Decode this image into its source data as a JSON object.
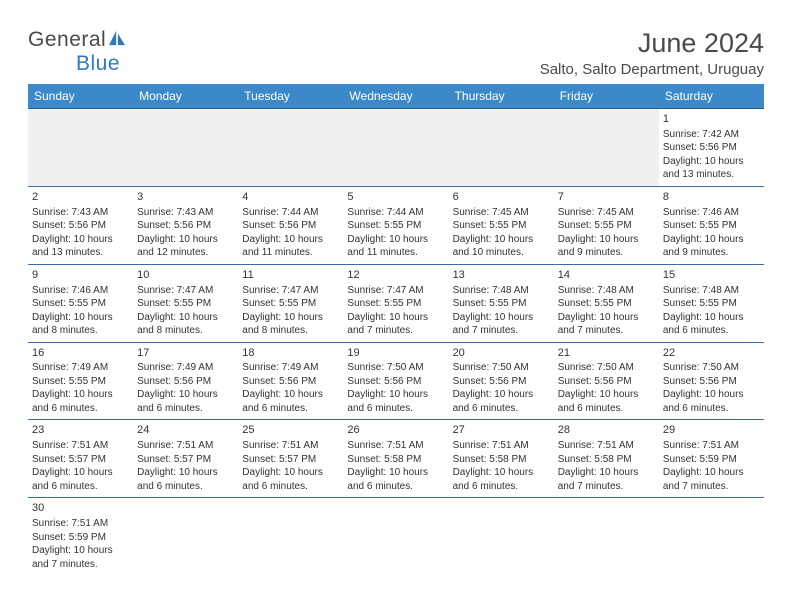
{
  "logo": {
    "text1": "General",
    "text2": "Blue"
  },
  "title": "June 2024",
  "location": "Salto, Salto Department, Uruguay",
  "colors": {
    "header_bg": "#3b89c8",
    "header_text": "#ffffff",
    "rule": "#3b6fa3",
    "logo_blue": "#2f7bbf",
    "text": "#4a4a4a"
  },
  "day_headers": [
    "Sunday",
    "Monday",
    "Tuesday",
    "Wednesday",
    "Thursday",
    "Friday",
    "Saturday"
  ],
  "weeks": [
    [
      null,
      null,
      null,
      null,
      null,
      null,
      {
        "n": "1",
        "sr": "7:42 AM",
        "ss": "5:56 PM",
        "dl": "10 hours and 13 minutes."
      }
    ],
    [
      {
        "n": "2",
        "sr": "7:43 AM",
        "ss": "5:56 PM",
        "dl": "10 hours and 13 minutes."
      },
      {
        "n": "3",
        "sr": "7:43 AM",
        "ss": "5:56 PM",
        "dl": "10 hours and 12 minutes."
      },
      {
        "n": "4",
        "sr": "7:44 AM",
        "ss": "5:56 PM",
        "dl": "10 hours and 11 minutes."
      },
      {
        "n": "5",
        "sr": "7:44 AM",
        "ss": "5:55 PM",
        "dl": "10 hours and 11 minutes."
      },
      {
        "n": "6",
        "sr": "7:45 AM",
        "ss": "5:55 PM",
        "dl": "10 hours and 10 minutes."
      },
      {
        "n": "7",
        "sr": "7:45 AM",
        "ss": "5:55 PM",
        "dl": "10 hours and 9 minutes."
      },
      {
        "n": "8",
        "sr": "7:46 AM",
        "ss": "5:55 PM",
        "dl": "10 hours and 9 minutes."
      }
    ],
    [
      {
        "n": "9",
        "sr": "7:46 AM",
        "ss": "5:55 PM",
        "dl": "10 hours and 8 minutes."
      },
      {
        "n": "10",
        "sr": "7:47 AM",
        "ss": "5:55 PM",
        "dl": "10 hours and 8 minutes."
      },
      {
        "n": "11",
        "sr": "7:47 AM",
        "ss": "5:55 PM",
        "dl": "10 hours and 8 minutes."
      },
      {
        "n": "12",
        "sr": "7:47 AM",
        "ss": "5:55 PM",
        "dl": "10 hours and 7 minutes."
      },
      {
        "n": "13",
        "sr": "7:48 AM",
        "ss": "5:55 PM",
        "dl": "10 hours and 7 minutes."
      },
      {
        "n": "14",
        "sr": "7:48 AM",
        "ss": "5:55 PM",
        "dl": "10 hours and 7 minutes."
      },
      {
        "n": "15",
        "sr": "7:48 AM",
        "ss": "5:55 PM",
        "dl": "10 hours and 6 minutes."
      }
    ],
    [
      {
        "n": "16",
        "sr": "7:49 AM",
        "ss": "5:55 PM",
        "dl": "10 hours and 6 minutes."
      },
      {
        "n": "17",
        "sr": "7:49 AM",
        "ss": "5:56 PM",
        "dl": "10 hours and 6 minutes."
      },
      {
        "n": "18",
        "sr": "7:49 AM",
        "ss": "5:56 PM",
        "dl": "10 hours and 6 minutes."
      },
      {
        "n": "19",
        "sr": "7:50 AM",
        "ss": "5:56 PM",
        "dl": "10 hours and 6 minutes."
      },
      {
        "n": "20",
        "sr": "7:50 AM",
        "ss": "5:56 PM",
        "dl": "10 hours and 6 minutes."
      },
      {
        "n": "21",
        "sr": "7:50 AM",
        "ss": "5:56 PM",
        "dl": "10 hours and 6 minutes."
      },
      {
        "n": "22",
        "sr": "7:50 AM",
        "ss": "5:56 PM",
        "dl": "10 hours and 6 minutes."
      }
    ],
    [
      {
        "n": "23",
        "sr": "7:51 AM",
        "ss": "5:57 PM",
        "dl": "10 hours and 6 minutes."
      },
      {
        "n": "24",
        "sr": "7:51 AM",
        "ss": "5:57 PM",
        "dl": "10 hours and 6 minutes."
      },
      {
        "n": "25",
        "sr": "7:51 AM",
        "ss": "5:57 PM",
        "dl": "10 hours and 6 minutes."
      },
      {
        "n": "26",
        "sr": "7:51 AM",
        "ss": "5:58 PM",
        "dl": "10 hours and 6 minutes."
      },
      {
        "n": "27",
        "sr": "7:51 AM",
        "ss": "5:58 PM",
        "dl": "10 hours and 6 minutes."
      },
      {
        "n": "28",
        "sr": "7:51 AM",
        "ss": "5:58 PM",
        "dl": "10 hours and 7 minutes."
      },
      {
        "n": "29",
        "sr": "7:51 AM",
        "ss": "5:59 PM",
        "dl": "10 hours and 7 minutes."
      }
    ],
    [
      {
        "n": "30",
        "sr": "7:51 AM",
        "ss": "5:59 PM",
        "dl": "10 hours and 7 minutes."
      },
      null,
      null,
      null,
      null,
      null,
      null
    ]
  ],
  "labels": {
    "sunrise": "Sunrise: ",
    "sunset": "Sunset: ",
    "daylight": "Daylight: "
  }
}
